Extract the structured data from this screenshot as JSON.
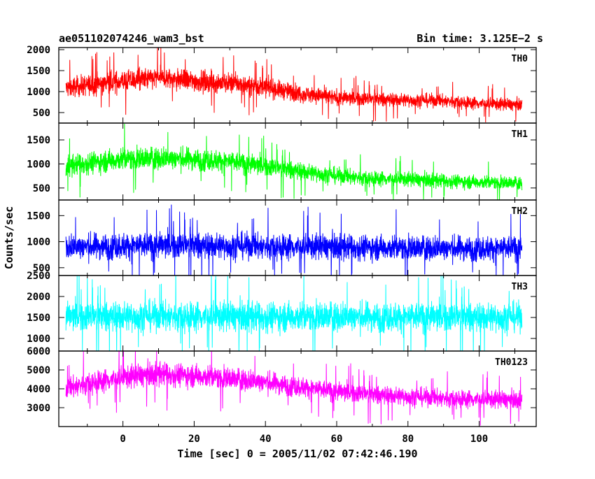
{
  "chart_data": {
    "type": "line",
    "title": "ae051102074246_wam3_bst",
    "subtitle": "Bin time: 3.125E−2 s",
    "xlabel": "Time [sec] 0 = 2005/11/02 07:42:46.190",
    "ylabel": "Counts/sec",
    "xlim": [
      -18,
      116
    ],
    "x_ticks": [
      0,
      20,
      40,
      60,
      80,
      100
    ],
    "data_x_range": [
      -16,
      112
    ],
    "grid": false,
    "panels": [
      {
        "name": "TH0",
        "color": "#ff0000",
        "ylim": [
          250,
          2050
        ],
        "y_ticks": [
          500,
          1000,
          1500,
          2000
        ],
        "x": [
          -16,
          -10,
          0,
          10,
          20,
          30,
          40,
          50,
          60,
          70,
          80,
          90,
          100,
          112
        ],
        "mean": [
          1080,
          1150,
          1250,
          1320,
          1250,
          1200,
          1100,
          950,
          850,
          820,
          800,
          780,
          720,
          680
        ],
        "spread": [
          420,
          440,
          460,
          470,
          450,
          430,
          400,
          360,
          320,
          300,
          290,
          280,
          270,
          260
        ]
      },
      {
        "name": "TH1",
        "color": "#00ff00",
        "ylim": [
          250,
          1850
        ],
        "y_ticks": [
          500,
          1000,
          1500
        ],
        "x": [
          -16,
          -10,
          0,
          10,
          20,
          30,
          40,
          50,
          60,
          70,
          80,
          90,
          100,
          112
        ],
        "mean": [
          950,
          1020,
          1100,
          1120,
          1100,
          1050,
          950,
          850,
          750,
          700,
          680,
          650,
          620,
          600
        ],
        "spread": [
          380,
          400,
          420,
          420,
          410,
          390,
          360,
          330,
          300,
          280,
          270,
          260,
          250,
          240
        ]
      },
      {
        "name": "TH2",
        "color": "#0000ff",
        "ylim": [
          350,
          1800
        ],
        "y_ticks": [
          500,
          1000,
          1500
        ],
        "x": [
          -16,
          0,
          20,
          40,
          60,
          80,
          100,
          112
        ],
        "mean": [
          900,
          920,
          930,
          910,
          900,
          880,
          870,
          880
        ],
        "spread": [
          430,
          450,
          450,
          440,
          430,
          420,
          420,
          430
        ]
      },
      {
        "name": "TH3",
        "color": "#00ffff",
        "ylim": [
          700,
          2500
        ],
        "y_ticks": [
          1000,
          1500,
          2000,
          2500
        ],
        "x": [
          -16,
          0,
          20,
          40,
          60,
          80,
          100,
          112
        ],
        "mean": [
          1520,
          1530,
          1530,
          1520,
          1520,
          1510,
          1510,
          1510
        ],
        "spread": [
          620,
          640,
          640,
          630,
          630,
          620,
          620,
          620
        ]
      },
      {
        "name": "TH0123",
        "color": "#ff00ff",
        "ylim": [
          2000,
          6000
        ],
        "y_ticks": [
          3000,
          4000,
          5000,
          6000
        ],
        "x": [
          -16,
          -10,
          0,
          10,
          20,
          30,
          40,
          50,
          60,
          70,
          80,
          90,
          100,
          112
        ],
        "mean": [
          4000,
          4300,
          4600,
          4800,
          4700,
          4550,
          4350,
          4100,
          3850,
          3700,
          3600,
          3500,
          3450,
          3400
        ],
        "spread": [
          1000,
          1050,
          1100,
          1100,
          1080,
          1050,
          1000,
          950,
          900,
          880,
          860,
          850,
          840,
          830
        ]
      }
    ]
  }
}
